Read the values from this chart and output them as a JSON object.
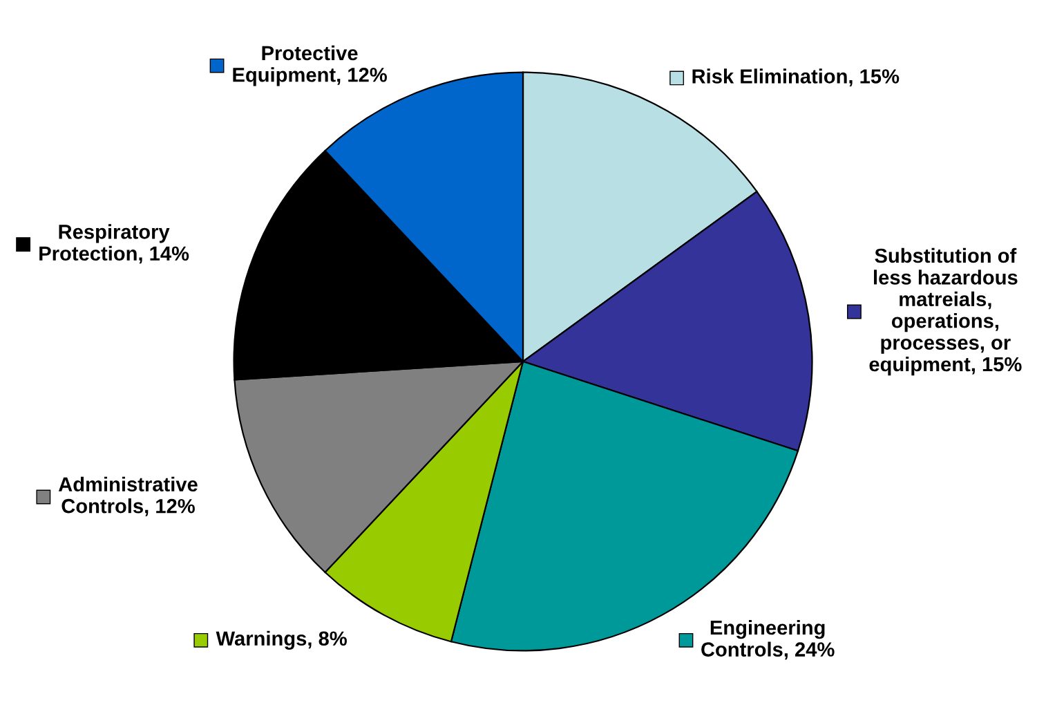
{
  "chart_data": {
    "type": "pie",
    "categories": [
      "Risk Elimination",
      "Substitution of\nless hazardous\nmatreials,\noperations,\nprocesses, or\nequipment",
      "Engineering\nControls",
      "Warnings",
      "Administrative\nControls",
      "Respiratory\nProtection",
      "Protective\nEquipment"
    ],
    "values": [
      15,
      15,
      24,
      8,
      12,
      14,
      12
    ],
    "value_labels": [
      "15%",
      "15%",
      "24%",
      "8%",
      "12%",
      "14%",
      "12%"
    ],
    "colors": [
      "#b8e0e4",
      "#333399",
      "#009999",
      "#99cc00",
      "#808080",
      "#000000",
      "#0066cc"
    ],
    "legend": "top right"
  }
}
